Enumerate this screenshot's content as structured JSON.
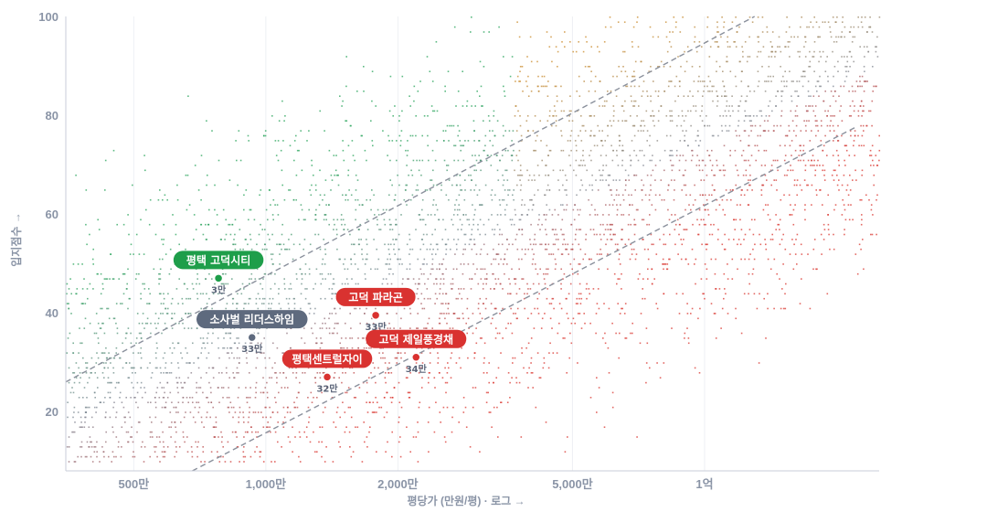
{
  "chart_data": {
    "type": "scatter",
    "title": "",
    "xlabel": "평당가 (만원/평) · 로그 →",
    "ylabel": "입지점수 →",
    "x_scale": "log",
    "xlim": [
      350,
      25000
    ],
    "ylim": [
      8,
      100
    ],
    "x_ticks": [
      {
        "value": 500,
        "label": "500만"
      },
      {
        "value": 1000,
        "label": "1,000만"
      },
      {
        "value": 2000,
        "label": "2,000만"
      },
      {
        "value": 5000,
        "label": "5,000만"
      },
      {
        "value": 10000,
        "label": "1억"
      }
    ],
    "y_ticks": [
      20,
      40,
      60,
      80,
      100
    ],
    "grid": {
      "vertical": true,
      "horizontal": false
    },
    "background_cloud": {
      "description_points": "dense dot cloud, colored green (high score/low price) through olive and gray to red (low score/high price)",
      "colors": {
        "low_price_high_score": "#27a35a",
        "mid": "#7f8794",
        "high_price_low_score": "#d9352f",
        "high_price_high_score": "#c98a2a"
      }
    },
    "reference_lines": [
      {
        "points": [
          [
            350,
            26
          ],
          [
            13000,
            100
          ]
        ],
        "style": "dashed",
        "color": "#8a909c"
      },
      {
        "points": [
          [
            680,
            8
          ],
          [
            22000,
            77.5
          ]
        ],
        "style": "dashed",
        "color": "#8a909c"
      }
    ],
    "highlights": [
      {
        "name": "평택 고덕시티",
        "x": 780,
        "y": 47,
        "sub": "3만",
        "color": "#1e9e4a"
      },
      {
        "name": "소사벌 리더스하임",
        "x": 930,
        "y": 35,
        "sub": "33만",
        "color": "#5e6a7e"
      },
      {
        "name": "고덕 파라곤",
        "x": 1780,
        "y": 39.5,
        "sub": "33만",
        "color": "#d93230"
      },
      {
        "name": "고덕 제일풍경채",
        "x": 2200,
        "y": 31,
        "sub": "34만",
        "color": "#d93230"
      },
      {
        "name": "평택센트럴자이",
        "x": 1380,
        "y": 27,
        "sub": "32만",
        "color": "#d93230"
      }
    ]
  }
}
